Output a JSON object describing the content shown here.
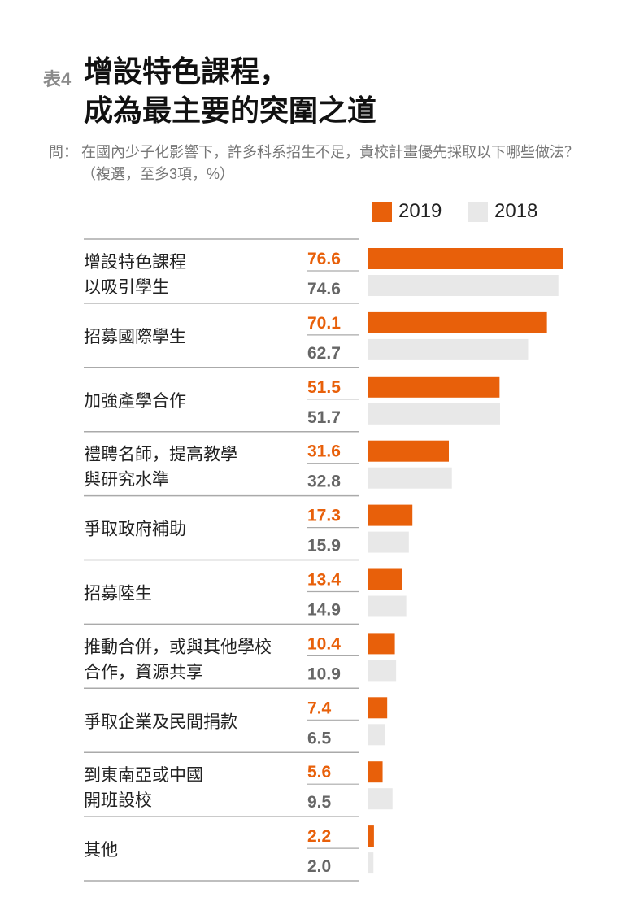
{
  "header": {
    "tag": "表4",
    "title_line1": "增設特色課程，",
    "title_line2": "成為最主要的突圍之道",
    "question_label": "問：",
    "question_text": "在國內少子化影響下，許多科系招生不足，貴校計畫優先採取以下哪些做法？（複選，至多3項，%）"
  },
  "colors": {
    "2019": "#e8600a",
    "2018": "#e8e8e8",
    "value_2019": "#e8600a",
    "value_2018": "#666666"
  },
  "chart_data": {
    "type": "bar",
    "orientation": "horizontal",
    "categories": [
      [
        "增設特色課程",
        "以吸引學生"
      ],
      [
        "招募國際學生"
      ],
      [
        "加強產學合作"
      ],
      [
        "禮聘名師，提高教學",
        "與研究水準"
      ],
      [
        "爭取政府補助"
      ],
      [
        "招募陸生"
      ],
      [
        "推動合併，或與其他學校",
        "合作，資源共享"
      ],
      [
        "爭取企業及民間捐款"
      ],
      [
        "到東南亞或中國",
        "開班設校"
      ],
      [
        "其他"
      ]
    ],
    "series": [
      {
        "name": "2019",
        "values": [
          76.6,
          70.1,
          51.5,
          31.6,
          17.3,
          13.4,
          10.4,
          7.4,
          5.6,
          2.2
        ]
      },
      {
        "name": "2018",
        "values": [
          74.6,
          62.7,
          51.7,
          32.8,
          15.9,
          14.9,
          10.9,
          6.5,
          9.5,
          2.0
        ]
      }
    ],
    "xlim": [
      0,
      80
    ],
    "legend_placement": "top-right",
    "grid": false
  }
}
